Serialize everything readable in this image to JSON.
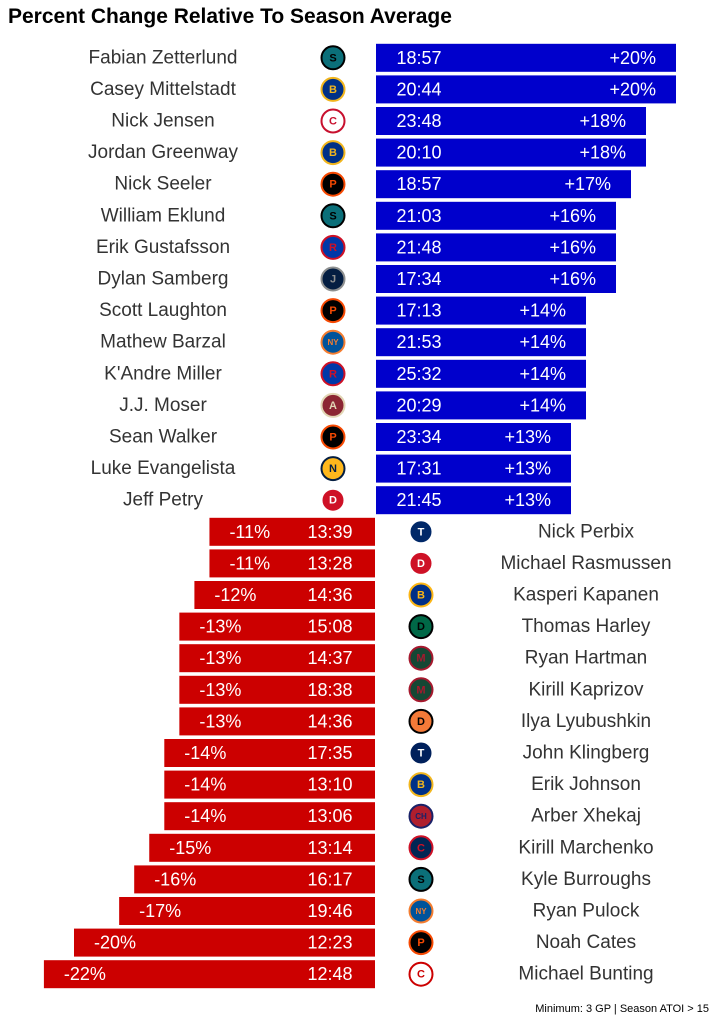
{
  "chart_data": {
    "type": "bar",
    "title": "Percent Change Relative To Season Average",
    "caption": "Minimum: 3 GP | Season ATOI > 15",
    "xlim": [
      -22,
      20
    ],
    "colors": {
      "positive": "#0000cc",
      "negative": "#cc0000",
      "bar_text": "#ffffff",
      "name_text": "#333333"
    },
    "rows": [
      {
        "player": "Fabian Zetterlund",
        "team_logo": "sharks-logo",
        "toi": "18:57",
        "pct": 20,
        "pct_label": "+20%"
      },
      {
        "player": "Casey Mittelstadt",
        "team_logo": "sabres-logo",
        "toi": "20:44",
        "pct": 20,
        "pct_label": "+20%"
      },
      {
        "player": "Nick Jensen",
        "team_logo": "capitals-logo",
        "toi": "23:48",
        "pct": 18,
        "pct_label": "+18%"
      },
      {
        "player": "Jordan Greenway",
        "team_logo": "sabres-logo",
        "toi": "20:10",
        "pct": 18,
        "pct_label": "+18%"
      },
      {
        "player": "Nick Seeler",
        "team_logo": "flyers-logo",
        "toi": "18:57",
        "pct": 17,
        "pct_label": "+17%"
      },
      {
        "player": "William Eklund",
        "team_logo": "sharks-logo",
        "toi": "21:03",
        "pct": 16,
        "pct_label": "+16%"
      },
      {
        "player": "Erik Gustafsson",
        "team_logo": "rangers-logo",
        "toi": "21:48",
        "pct": 16,
        "pct_label": "+16%"
      },
      {
        "player": "Dylan Samberg",
        "team_logo": "jets-logo",
        "toi": "17:34",
        "pct": 16,
        "pct_label": "+16%"
      },
      {
        "player": "Scott Laughton",
        "team_logo": "flyers-logo",
        "toi": "17:13",
        "pct": 14,
        "pct_label": "+14%"
      },
      {
        "player": "Mathew Barzal",
        "team_logo": "islanders-logo",
        "toi": "21:53",
        "pct": 14,
        "pct_label": "+14%"
      },
      {
        "player": "K'Andre Miller",
        "team_logo": "rangers-logo",
        "toi": "25:32",
        "pct": 14,
        "pct_label": "+14%"
      },
      {
        "player": "J.J. Moser",
        "team_logo": "coyotes-logo",
        "toi": "20:29",
        "pct": 14,
        "pct_label": "+14%"
      },
      {
        "player": "Sean Walker",
        "team_logo": "flyers-logo",
        "toi": "23:34",
        "pct": 13,
        "pct_label": "+13%"
      },
      {
        "player": "Luke Evangelista",
        "team_logo": "predators-logo",
        "toi": "17:31",
        "pct": 13,
        "pct_label": "+13%"
      },
      {
        "player": "Jeff Petry",
        "team_logo": "red-wings-logo",
        "toi": "21:45",
        "pct": 13,
        "pct_label": "+13%"
      },
      {
        "player": "Nick Perbix",
        "team_logo": "lightning-logo",
        "toi": "13:39",
        "pct": -11,
        "pct_label": "-11%"
      },
      {
        "player": "Michael Rasmussen",
        "team_logo": "red-wings-logo",
        "toi": "13:28",
        "pct": -11,
        "pct_label": "-11%"
      },
      {
        "player": "Kasperi Kapanen",
        "team_logo": "blues-logo",
        "toi": "14:36",
        "pct": -12,
        "pct_label": "-12%"
      },
      {
        "player": "Thomas Harley",
        "team_logo": "stars-logo",
        "toi": "15:08",
        "pct": -13,
        "pct_label": "-13%"
      },
      {
        "player": "Ryan Hartman",
        "team_logo": "wild-logo",
        "toi": "14:37",
        "pct": -13,
        "pct_label": "-13%"
      },
      {
        "player": "Kirill Kaprizov",
        "team_logo": "wild-logo",
        "toi": "18:38",
        "pct": -13,
        "pct_label": "-13%"
      },
      {
        "player": "Ilya Lyubushkin",
        "team_logo": "ducks-logo",
        "toi": "14:36",
        "pct": -13,
        "pct_label": "-13%"
      },
      {
        "player": "John Klingberg",
        "team_logo": "maple-leafs-logo",
        "toi": "17:35",
        "pct": -14,
        "pct_label": "-14%"
      },
      {
        "player": "Erik Johnson",
        "team_logo": "sabres-logo",
        "toi": "13:10",
        "pct": -14,
        "pct_label": "-14%"
      },
      {
        "player": "Arber Xhekaj",
        "team_logo": "canadiens-logo",
        "toi": "13:06",
        "pct": -14,
        "pct_label": "-14%"
      },
      {
        "player": "Kirill Marchenko",
        "team_logo": "blue-jackets-logo",
        "toi": "13:14",
        "pct": -15,
        "pct_label": "-15%"
      },
      {
        "player": "Kyle Burroughs",
        "team_logo": "sharks-logo",
        "toi": "16:17",
        "pct": -16,
        "pct_label": "-16%"
      },
      {
        "player": "Ryan Pulock",
        "team_logo": "islanders-logo",
        "toi": "19:46",
        "pct": -17,
        "pct_label": "-17%"
      },
      {
        "player": "Noah Cates",
        "team_logo": "flyers-logo",
        "toi": "12:23",
        "pct": -20,
        "pct_label": "-20%"
      },
      {
        "player": "Michael Bunting",
        "team_logo": "hurricanes-logo",
        "toi": "12:48",
        "pct": -22,
        "pct_label": "-22%"
      }
    ]
  }
}
